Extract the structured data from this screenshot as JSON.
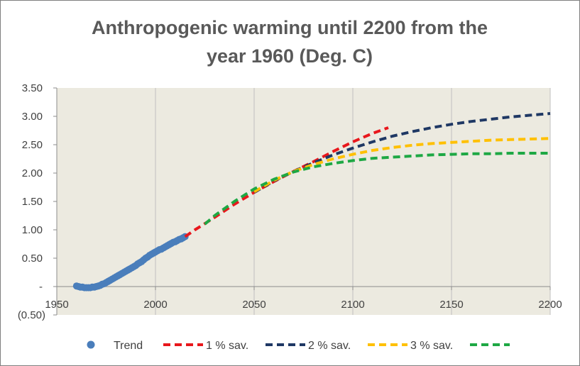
{
  "chart_data": {
    "type": "line",
    "title_lines": [
      "Anthropogenic warming until 2200 from the",
      "year 1960 (Deg. C)"
    ],
    "xlabel": "",
    "ylabel": "",
    "xlim": [
      1950,
      2200
    ],
    "ylim": [
      -0.5,
      3.5
    ],
    "x_ticks": [
      1950,
      2000,
      2050,
      2100,
      2150,
      2200
    ],
    "x_tick_labels": [
      "1950",
      "2000",
      "2050",
      "2100",
      "2150",
      "2200"
    ],
    "y_ticks": [
      -0.5,
      0,
      0.5,
      1.0,
      1.5,
      2.0,
      2.5,
      3.0,
      3.5
    ],
    "y_tick_labels": [
      "(0.50)",
      "-",
      "0.50",
      "1.00",
      "1.50",
      "2.00",
      "2.50",
      "3.00",
      "3.50"
    ],
    "grid": "vertical",
    "plot_background": "#ECEAE0",
    "legend_position": "bottom",
    "series": [
      {
        "name": "Trend",
        "style": "markers",
        "color": "#4A7EBB",
        "points": [
          [
            1960,
            0.01
          ],
          [
            1961,
            0.0
          ],
          [
            1962,
            -0.01
          ],
          [
            1963,
            -0.01
          ],
          [
            1964,
            -0.02
          ],
          [
            1965,
            -0.02
          ],
          [
            1966,
            -0.02
          ],
          [
            1967,
            -0.02
          ],
          [
            1968,
            -0.01
          ],
          [
            1969,
            -0.01
          ],
          [
            1970,
            0.0
          ],
          [
            1971,
            0.01
          ],
          [
            1972,
            0.02
          ],
          [
            1973,
            0.04
          ],
          [
            1974,
            0.05
          ],
          [
            1975,
            0.07
          ],
          [
            1976,
            0.09
          ],
          [
            1977,
            0.11
          ],
          [
            1978,
            0.13
          ],
          [
            1979,
            0.15
          ],
          [
            1980,
            0.17
          ],
          [
            1981,
            0.19
          ],
          [
            1982,
            0.21
          ],
          [
            1983,
            0.23
          ],
          [
            1984,
            0.25
          ],
          [
            1985,
            0.27
          ],
          [
            1986,
            0.29
          ],
          [
            1987,
            0.31
          ],
          [
            1988,
            0.33
          ],
          [
            1989,
            0.35
          ],
          [
            1990,
            0.37
          ],
          [
            1991,
            0.4
          ],
          [
            1992,
            0.42
          ],
          [
            1993,
            0.44
          ],
          [
            1994,
            0.47
          ],
          [
            1995,
            0.5
          ],
          [
            1996,
            0.52
          ],
          [
            1997,
            0.55
          ],
          [
            1998,
            0.57
          ],
          [
            1999,
            0.59
          ],
          [
            2000,
            0.61
          ],
          [
            2001,
            0.63
          ],
          [
            2002,
            0.65
          ],
          [
            2003,
            0.66
          ],
          [
            2004,
            0.68
          ],
          [
            2005,
            0.7
          ],
          [
            2006,
            0.72
          ],
          [
            2007,
            0.74
          ],
          [
            2008,
            0.76
          ],
          [
            2009,
            0.78
          ],
          [
            2010,
            0.79
          ],
          [
            2011,
            0.81
          ],
          [
            2012,
            0.83
          ],
          [
            2013,
            0.84
          ],
          [
            2014,
            0.86
          ],
          [
            2015,
            0.88
          ]
        ]
      },
      {
        "name": "1 % sav.",
        "style": "dashed",
        "color": "#E8171C",
        "points": [
          [
            2015,
            0.88
          ],
          [
            2020,
            1.0
          ],
          [
            2030,
            1.22
          ],
          [
            2040,
            1.45
          ],
          [
            2050,
            1.66
          ],
          [
            2060,
            1.85
          ],
          [
            2070,
            2.03
          ],
          [
            2080,
            2.2
          ],
          [
            2090,
            2.38
          ],
          [
            2100,
            2.55
          ],
          [
            2110,
            2.7
          ],
          [
            2118,
            2.8
          ]
        ]
      },
      {
        "name": "2 % sav.",
        "style": "dashed",
        "color": "#1F3864",
        "points": [
          [
            2050,
            1.66
          ],
          [
            2060,
            1.86
          ],
          [
            2070,
            2.03
          ],
          [
            2080,
            2.18
          ],
          [
            2090,
            2.32
          ],
          [
            2100,
            2.44
          ],
          [
            2110,
            2.55
          ],
          [
            2120,
            2.65
          ],
          [
            2130,
            2.73
          ],
          [
            2140,
            2.8
          ],
          [
            2150,
            2.86
          ],
          [
            2160,
            2.91
          ],
          [
            2170,
            2.95
          ],
          [
            2180,
            2.99
          ],
          [
            2190,
            3.02
          ],
          [
            2200,
            3.05
          ]
        ]
      },
      {
        "name": "3 % sav.",
        "style": "dashed",
        "color": "#FFC000",
        "points": [
          [
            2050,
            1.67
          ],
          [
            2060,
            1.87
          ],
          [
            2070,
            2.03
          ],
          [
            2080,
            2.15
          ],
          [
            2090,
            2.25
          ],
          [
            2100,
            2.33
          ],
          [
            2110,
            2.4
          ],
          [
            2120,
            2.45
          ],
          [
            2130,
            2.49
          ],
          [
            2140,
            2.52
          ],
          [
            2150,
            2.54
          ],
          [
            2160,
            2.56
          ],
          [
            2170,
            2.58
          ],
          [
            2180,
            2.59
          ],
          [
            2190,
            2.6
          ],
          [
            2200,
            2.61
          ]
        ]
      },
      {
        "name": "",
        "style": "dashed",
        "color": "#1EA844",
        "points": [
          [
            2025,
            1.1
          ],
          [
            2030,
            1.25
          ],
          [
            2040,
            1.5
          ],
          [
            2050,
            1.72
          ],
          [
            2060,
            1.89
          ],
          [
            2070,
            2.02
          ],
          [
            2080,
            2.11
          ],
          [
            2090,
            2.17
          ],
          [
            2100,
            2.22
          ],
          [
            2110,
            2.26
          ],
          [
            2120,
            2.28
          ],
          [
            2130,
            2.3
          ],
          [
            2140,
            2.32
          ],
          [
            2150,
            2.33
          ],
          [
            2160,
            2.34
          ],
          [
            2170,
            2.34
          ],
          [
            2180,
            2.35
          ],
          [
            2190,
            2.35
          ],
          [
            2200,
            2.35
          ]
        ]
      }
    ]
  }
}
